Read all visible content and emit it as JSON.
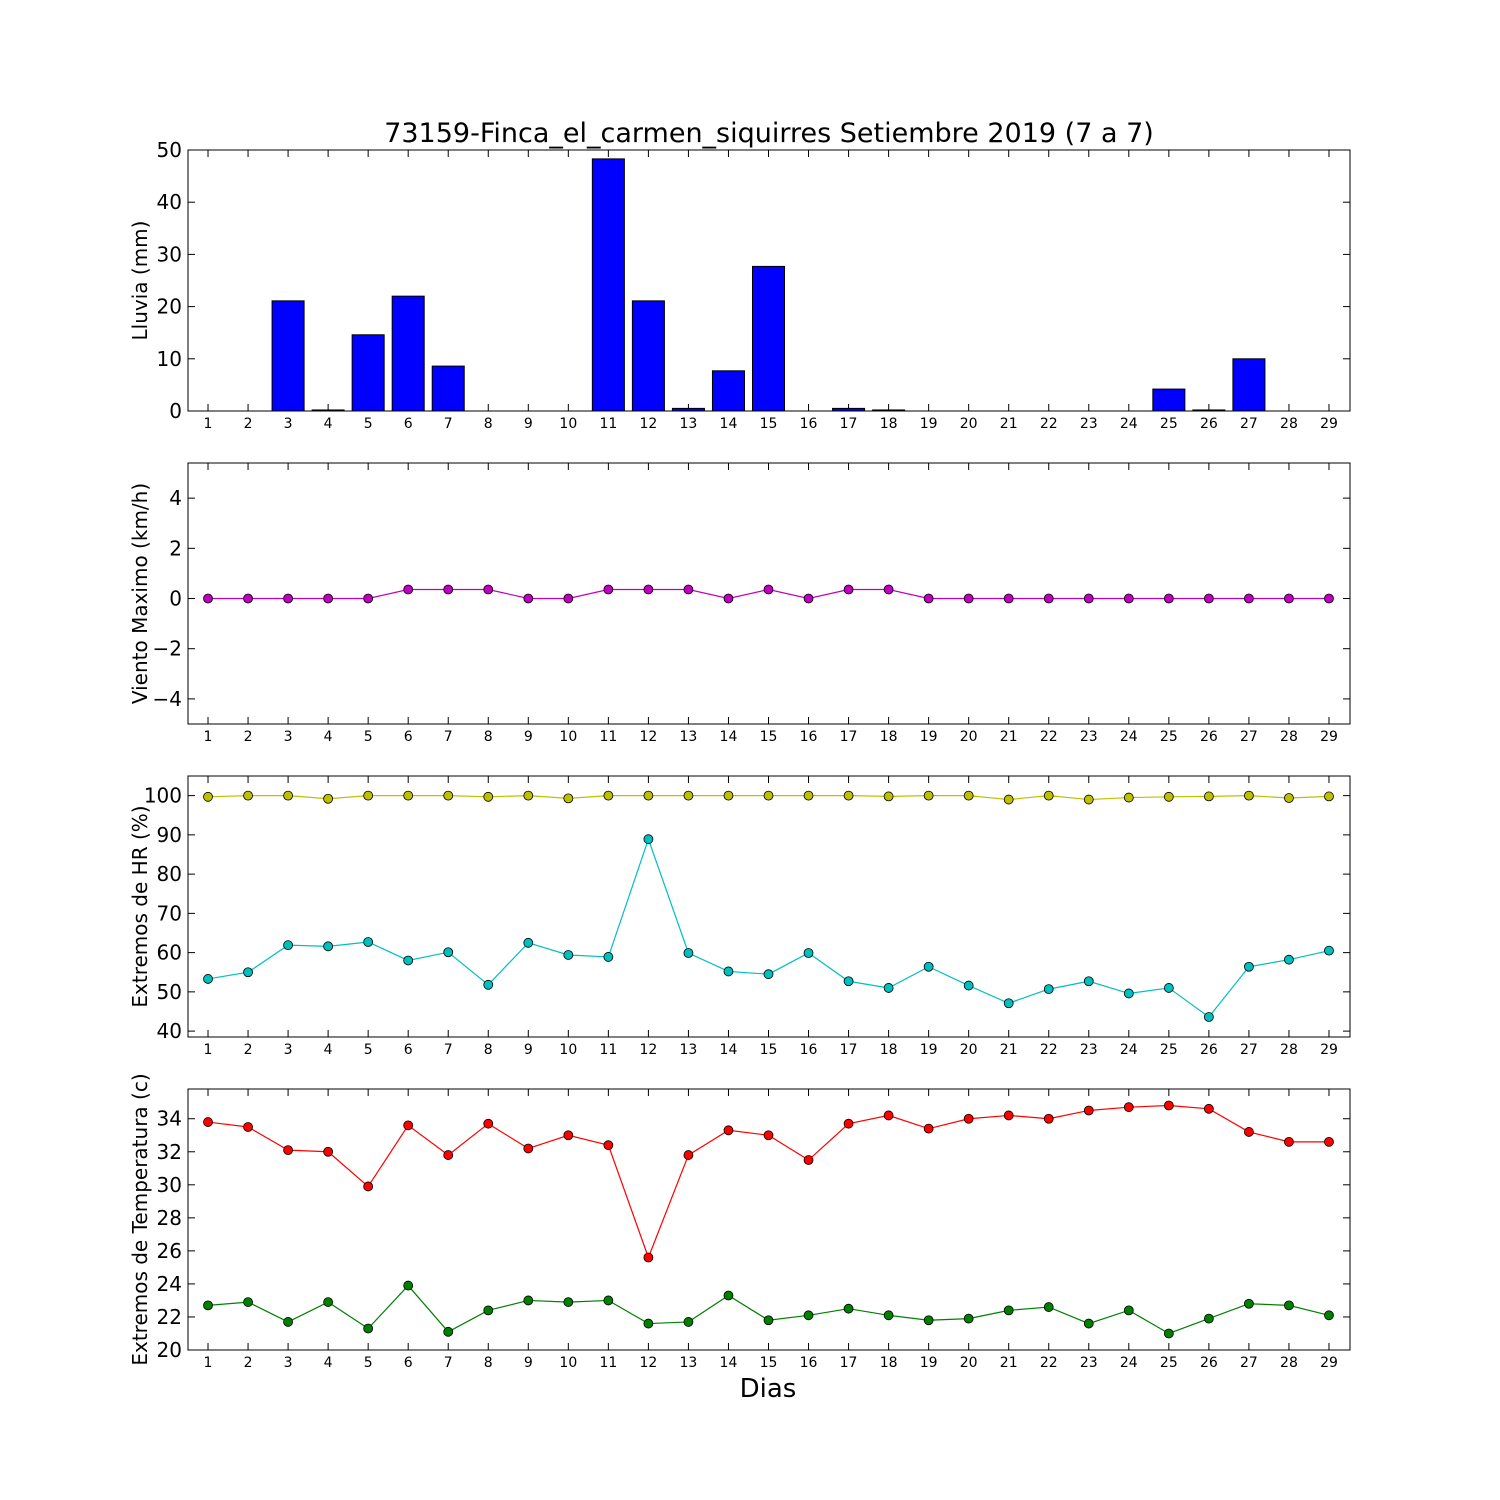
{
  "title": "73159-Finca_el_carmen_siquirres Setiembre 2019  (7 a 7)",
  "xlabel": "Dias",
  "chart_data": [
    {
      "type": "bar",
      "ylabel": "Lluvia (mm)",
      "ylim": [
        0,
        50
      ],
      "yticks": [
        0,
        10,
        20,
        30,
        40,
        50
      ],
      "categories": [
        1,
        2,
        3,
        4,
        5,
        6,
        7,
        8,
        9,
        10,
        11,
        12,
        13,
        14,
        15,
        16,
        17,
        18,
        19,
        20,
        21,
        22,
        23,
        24,
        25,
        26,
        27,
        28,
        29
      ],
      "color": "#0000ff",
      "values": [
        0,
        0,
        21.1,
        0.2,
        14.6,
        22.0,
        8.6,
        0,
        0,
        0,
        48.3,
        21.1,
        0.5,
        7.7,
        27.7,
        0,
        0.5,
        0.2,
        0,
        0,
        0,
        0,
        0,
        0,
        4.2,
        0.2,
        10.0,
        0,
        0
      ]
    },
    {
      "type": "line",
      "ylabel": "Viento Maximo (km/h)",
      "ylim": [
        -5,
        5.4
      ],
      "yticks": [
        -4,
        -2,
        0,
        2,
        4
      ],
      "x": [
        1,
        2,
        3,
        4,
        5,
        6,
        7,
        8,
        9,
        10,
        11,
        12,
        13,
        14,
        15,
        16,
        17,
        18,
        19,
        20,
        21,
        22,
        23,
        24,
        25,
        26,
        27,
        28,
        29
      ],
      "series": [
        {
          "color": "#bf00bf",
          "values": [
            0,
            0,
            0,
            0,
            0,
            0.36,
            0.36,
            0.36,
            0,
            0,
            0.36,
            0.36,
            0.36,
            0,
            0.36,
            0,
            0.36,
            0.36,
            0,
            0,
            0,
            0,
            0,
            0,
            0,
            0,
            0,
            0,
            0
          ]
        }
      ]
    },
    {
      "type": "line",
      "ylabel": "Extremos de HR (%)",
      "ylim": [
        38.5,
        105
      ],
      "yticks": [
        40,
        50,
        60,
        70,
        80,
        90,
        100
      ],
      "x": [
        1,
        2,
        3,
        4,
        5,
        6,
        7,
        8,
        9,
        10,
        11,
        12,
        13,
        14,
        15,
        16,
        17,
        18,
        19,
        20,
        21,
        22,
        23,
        24,
        25,
        26,
        27,
        28,
        29
      ],
      "series": [
        {
          "color": "#bfbf00",
          "values": [
            99.7,
            100,
            100,
            99.2,
            100,
            100,
            100,
            99.7,
            100,
            99.3,
            100,
            100,
            100,
            100,
            100,
            100,
            100,
            99.8,
            100,
            100,
            99.0,
            100,
            99.0,
            99.5,
            99.7,
            99.8,
            100,
            99.4,
            99.8
          ]
        },
        {
          "color": "#00bfbf",
          "values": [
            53.3,
            55.0,
            61.9,
            61.6,
            62.7,
            58.0,
            60.1,
            51.8,
            62.5,
            59.4,
            58.9,
            88.9,
            59.9,
            55.2,
            54.5,
            59.9,
            52.7,
            51.0,
            56.4,
            51.6,
            47.1,
            50.7,
            52.7,
            49.6,
            51.0,
            43.6,
            56.4,
            58.2,
            60.5
          ]
        }
      ]
    },
    {
      "type": "line",
      "ylabel": "Extremos de Temperatura (c)",
      "ylim": [
        20,
        35.8
      ],
      "yticks": [
        20,
        22,
        24,
        26,
        28,
        30,
        32,
        34
      ],
      "x": [
        1,
        2,
        3,
        4,
        5,
        6,
        7,
        8,
        9,
        10,
        11,
        12,
        13,
        14,
        15,
        16,
        17,
        18,
        19,
        20,
        21,
        22,
        23,
        24,
        25,
        26,
        27,
        28,
        29
      ],
      "series": [
        {
          "color": "#ff0000",
          "values": [
            33.8,
            33.5,
            32.1,
            32.0,
            29.9,
            33.6,
            31.8,
            33.7,
            32.2,
            33.0,
            32.4,
            25.6,
            31.8,
            33.3,
            33.0,
            31.5,
            33.7,
            34.2,
            33.4,
            34.0,
            34.2,
            34.0,
            34.5,
            34.7,
            34.8,
            34.6,
            33.2,
            32.6,
            32.6
          ]
        },
        {
          "color": "#008000",
          "values": [
            22.7,
            22.9,
            21.7,
            22.9,
            21.3,
            23.9,
            21.1,
            22.4,
            23.0,
            22.9,
            23.0,
            21.6,
            21.7,
            23.3,
            21.8,
            22.1,
            22.5,
            22.1,
            21.8,
            21.9,
            22.4,
            22.6,
            21.6,
            22.4,
            21.0,
            21.9,
            22.8,
            22.7,
            22.1
          ]
        }
      ]
    }
  ]
}
